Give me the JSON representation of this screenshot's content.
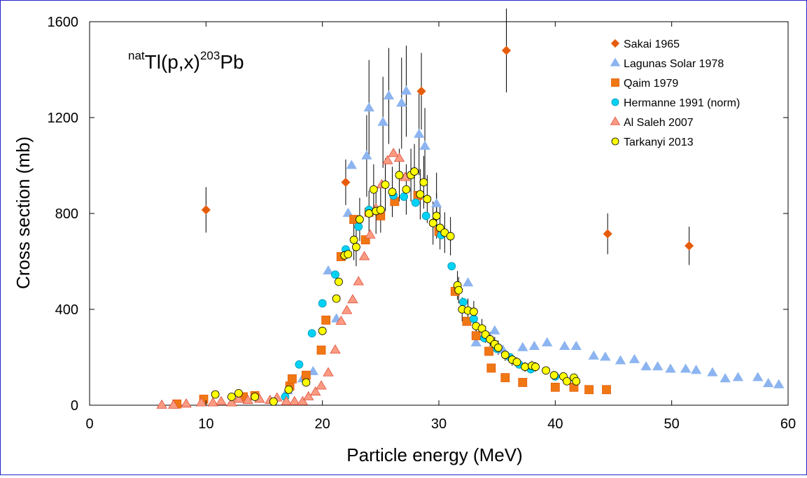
{
  "chart_data": {
    "type": "scatter",
    "title": {
      "prefix": "nat",
      "element": "Tl(p,x)",
      "product_mass": "203",
      "product": "Pb"
    },
    "xlabel": "Particle energy (MeV)",
    "ylabel": "Cross section (mb)",
    "xlim": [
      0,
      60
    ],
    "ylim": [
      0,
      1600
    ],
    "xticks": [
      0,
      10,
      20,
      30,
      40,
      50,
      60
    ],
    "yticks": [
      0,
      400,
      800,
      1200,
      1600
    ],
    "grid": false,
    "legend_position": "top-right",
    "colors": {
      "orange": "#f07814",
      "orange_dark": "#e65c0a",
      "blue_tri": "#8cb4f0",
      "cyan": "#00d2f5",
      "salmon": "#fa9b82",
      "yellow": "#ffff00",
      "frame": "#2323c8"
    },
    "series": [
      {
        "name": "Sakai 1965",
        "marker": "diamond",
        "points": [
          [
            10.0,
            815,
            95
          ],
          [
            22.0,
            930,
            95
          ],
          [
            28.5,
            1310,
            160
          ],
          [
            35.8,
            1480,
            175
          ],
          [
            44.5,
            715,
            85
          ],
          [
            51.5,
            665,
            80
          ]
        ]
      },
      {
        "name": "Lagunas Solar 1978",
        "marker": "triangle",
        "points": [
          [
            17.0,
            60,
            0
          ],
          [
            18.3,
            110,
            0
          ],
          [
            19.2,
            140,
            0
          ],
          [
            20.5,
            560,
            0
          ],
          [
            21.2,
            360,
            0
          ],
          [
            22.2,
            800,
            0
          ],
          [
            22.5,
            1000,
            0
          ],
          [
            23.8,
            1040,
            170
          ],
          [
            24.0,
            1240,
            200
          ],
          [
            25.2,
            1180,
            190
          ],
          [
            25.7,
            1290,
            200
          ],
          [
            26.8,
            1260,
            190
          ],
          [
            27.2,
            1310,
            190
          ],
          [
            28.3,
            1130,
            170
          ],
          [
            28.8,
            1080,
            160
          ],
          [
            29.8,
            840,
            130
          ],
          [
            32.5,
            510,
            0
          ],
          [
            33.2,
            260,
            0
          ],
          [
            34.8,
            310,
            0
          ],
          [
            35.5,
            230,
            0
          ],
          [
            37.2,
            240,
            0
          ],
          [
            38.2,
            245,
            0
          ],
          [
            39.3,
            260,
            0
          ],
          [
            40.8,
            245,
            0
          ],
          [
            41.8,
            245,
            0
          ],
          [
            43.3,
            205,
            0
          ],
          [
            44.3,
            200,
            0
          ],
          [
            45.6,
            185,
            0
          ],
          [
            46.8,
            190,
            0
          ],
          [
            47.8,
            160,
            0
          ],
          [
            48.8,
            160,
            0
          ],
          [
            49.9,
            150,
            0
          ],
          [
            51.2,
            150,
            0
          ],
          [
            52.1,
            145,
            0
          ],
          [
            53.5,
            135,
            0
          ],
          [
            54.6,
            110,
            0
          ],
          [
            55.7,
            115,
            0
          ],
          [
            57.4,
            115,
            0
          ],
          [
            58.3,
            90,
            0
          ],
          [
            59.2,
            85,
            0
          ]
        ]
      },
      {
        "name": "Qaim 1979",
        "marker": "square",
        "points": [
          [
            7.5,
            5,
            0
          ],
          [
            9.8,
            25,
            0
          ],
          [
            13.2,
            35,
            0
          ],
          [
            14.2,
            40,
            0
          ],
          [
            17.2,
            80,
            0
          ],
          [
            17.4,
            110,
            0
          ],
          [
            18.6,
            125,
            0
          ],
          [
            19.9,
            230,
            0
          ],
          [
            20.3,
            355,
            0
          ],
          [
            21.6,
            620,
            0
          ],
          [
            22.7,
            775,
            0
          ],
          [
            23.7,
            690,
            0
          ],
          [
            24.0,
            805,
            0
          ],
          [
            25.0,
            790,
            0
          ],
          [
            26.2,
            850,
            0
          ],
          [
            28.2,
            875,
            0
          ],
          [
            30.0,
            725,
            0
          ],
          [
            31.4,
            475,
            0
          ],
          [
            32.4,
            350,
            0
          ],
          [
            33.2,
            290,
            0
          ],
          [
            34.3,
            225,
            0
          ],
          [
            34.5,
            155,
            0
          ],
          [
            35.7,
            115,
            0
          ],
          [
            37.2,
            95,
            0
          ],
          [
            40.0,
            75,
            0
          ],
          [
            41.6,
            75,
            0
          ],
          [
            42.9,
            65,
            0
          ],
          [
            44.4,
            65,
            0
          ]
        ]
      },
      {
        "name": "Hermanne 1991 (norm)",
        "marker": "circle",
        "points": [
          [
            16.8,
            35,
            0
          ],
          [
            18.0,
            170,
            0
          ],
          [
            19.1,
            300,
            0
          ],
          [
            20.0,
            425,
            0
          ],
          [
            21.1,
            545,
            0
          ],
          [
            22.0,
            650,
            0
          ],
          [
            23.1,
            745,
            0
          ],
          [
            24.0,
            815,
            0
          ],
          [
            26.1,
            875,
            0
          ],
          [
            27.0,
            870,
            0
          ],
          [
            28.0,
            845,
            0
          ],
          [
            28.9,
            790,
            0
          ],
          [
            30.2,
            710,
            0
          ],
          [
            31.1,
            580,
            0
          ],
          [
            32.1,
            430,
            0
          ],
          [
            33.0,
            360,
            0
          ],
          [
            33.9,
            280,
            0
          ],
          [
            35.0,
            235,
            0
          ],
          [
            36.1,
            200,
            0
          ],
          [
            36.9,
            170,
            0
          ],
          [
            37.9,
            150,
            0
          ],
          [
            40.0,
            120,
            0
          ]
        ]
      },
      {
        "name": "Al Saleh 2007",
        "marker": "triangle",
        "points": [
          [
            6.2,
            0,
            0
          ],
          [
            7.2,
            0,
            0
          ],
          [
            8.3,
            5,
            0
          ],
          [
            9.6,
            10,
            0
          ],
          [
            10.6,
            10,
            0
          ],
          [
            11.3,
            15,
            0
          ],
          [
            12.2,
            10,
            0
          ],
          [
            12.8,
            25,
            0
          ],
          [
            13.6,
            20,
            0
          ],
          [
            14.6,
            25,
            0
          ],
          [
            15.5,
            20,
            0
          ],
          [
            16.1,
            30,
            0
          ],
          [
            16.9,
            15,
            0
          ],
          [
            17.6,
            15,
            0
          ],
          [
            18.3,
            15,
            0
          ],
          [
            18.8,
            35,
            0
          ],
          [
            19.4,
            55,
            0
          ],
          [
            19.9,
            80,
            0
          ],
          [
            20.5,
            135,
            0
          ],
          [
            21.1,
            230,
            0
          ],
          [
            21.6,
            350,
            0
          ],
          [
            22.1,
            395,
            0
          ],
          [
            22.6,
            440,
            0
          ],
          [
            23.1,
            515,
            0
          ],
          [
            23.6,
            620,
            0
          ],
          [
            24.1,
            710,
            0
          ],
          [
            24.6,
            820,
            0
          ],
          [
            25.1,
            920,
            0
          ],
          [
            25.6,
            1020,
            0
          ],
          [
            26.1,
            1050,
            0
          ],
          [
            26.6,
            1030,
            0
          ],
          [
            27.1,
            950,
            0
          ]
        ]
      },
      {
        "name": "Tarkanyi 2013",
        "marker": "circle",
        "points": [
          [
            10.8,
            45,
            0
          ],
          [
            12.2,
            35,
            0
          ],
          [
            12.8,
            50,
            0
          ],
          [
            14.2,
            35,
            0
          ],
          [
            15.8,
            15,
            0
          ],
          [
            17.1,
            65,
            0
          ],
          [
            18.6,
            95,
            0
          ],
          [
            20.0,
            310,
            0
          ],
          [
            21.2,
            445,
            0
          ],
          [
            21.4,
            515,
            0
          ],
          [
            21.9,
            625,
            0
          ],
          [
            22.2,
            630,
            0
          ],
          [
            22.7,
            690,
            85
          ],
          [
            22.9,
            660,
            80
          ],
          [
            23.2,
            775,
            90
          ],
          [
            24.0,
            800,
            95
          ],
          [
            24.4,
            900,
            105
          ],
          [
            24.6,
            810,
            95
          ],
          [
            25.0,
            815,
            95
          ],
          [
            25.4,
            920,
            110
          ],
          [
            26.0,
            890,
            105
          ],
          [
            26.6,
            960,
            110
          ],
          [
            27.2,
            900,
            105
          ],
          [
            27.6,
            960,
            110
          ],
          [
            27.9,
            975,
            115
          ],
          [
            28.4,
            880,
            105
          ],
          [
            28.7,
            930,
            110
          ],
          [
            29.0,
            860,
            100
          ],
          [
            29.5,
            760,
            90
          ],
          [
            29.8,
            790,
            95
          ],
          [
            30.1,
            740,
            90
          ],
          [
            30.5,
            720,
            85
          ],
          [
            31.0,
            705,
            80
          ],
          [
            31.6,
            500,
            60
          ],
          [
            31.7,
            480,
            55
          ],
          [
            32.0,
            400,
            50
          ],
          [
            32.5,
            395,
            50
          ],
          [
            33.0,
            390,
            45
          ],
          [
            33.2,
            330,
            40
          ],
          [
            33.7,
            320,
            40
          ],
          [
            34.0,
            295,
            35
          ],
          [
            34.4,
            275,
            30
          ],
          [
            34.8,
            255,
            30
          ],
          [
            35.1,
            240,
            30
          ],
          [
            35.7,
            210,
            25
          ],
          [
            36.3,
            190,
            25
          ],
          [
            36.7,
            180,
            20
          ],
          [
            37.4,
            160,
            20
          ],
          [
            38.0,
            165,
            20
          ],
          [
            38.3,
            160,
            20
          ],
          [
            39.2,
            145,
            15
          ],
          [
            39.9,
            125,
            15
          ],
          [
            40.7,
            120,
            15
          ],
          [
            41.0,
            100,
            15
          ],
          [
            41.6,
            115,
            15
          ],
          [
            41.8,
            100,
            15
          ]
        ]
      }
    ]
  }
}
